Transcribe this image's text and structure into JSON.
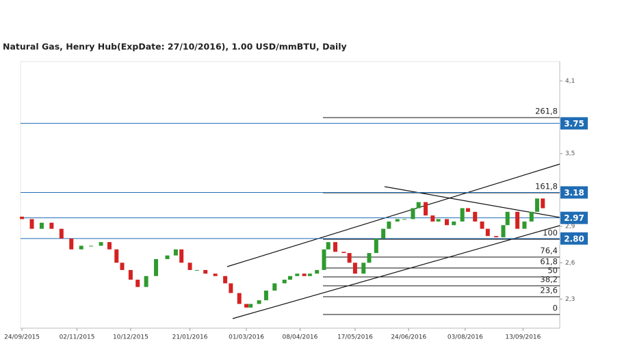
{
  "chart_data": {
    "type": "candlestick",
    "title": "Natural Gas, Henry Hub(ExpDate: 27/10/2016), 1.00 USD/mmBTU, Daily",
    "x": [
      "2015-09-24",
      "2015-10-01",
      "2015-10-08",
      "2015-10-15",
      "2015-10-22",
      "2015-10-29",
      "2015-11-05",
      "2015-11-12",
      "2015-11-19",
      "2015-11-25",
      "2015-11-30",
      "2015-12-04",
      "2015-12-10",
      "2015-12-15",
      "2015-12-21",
      "2015-12-28",
      "2016-01-05",
      "2016-01-11",
      "2016-01-15",
      "2016-01-21",
      "2016-01-26",
      "2016-02-01",
      "2016-02-08",
      "2016-02-15",
      "2016-02-19",
      "2016-02-25",
      "2016-03-01",
      "2016-03-04",
      "2016-03-10",
      "2016-03-15",
      "2016-03-21",
      "2016-03-28",
      "2016-04-01",
      "2016-04-06",
      "2016-04-11",
      "2016-04-15",
      "2016-04-20",
      "2016-04-25",
      "2016-04-28",
      "2016-05-03",
      "2016-05-09",
      "2016-05-13",
      "2016-05-17",
      "2016-05-23",
      "2016-05-27",
      "2016-06-01",
      "2016-06-06",
      "2016-06-10",
      "2016-06-16",
      "2016-06-21",
      "2016-06-27",
      "2016-07-01",
      "2016-07-06",
      "2016-07-11",
      "2016-07-15",
      "2016-07-21",
      "2016-07-26",
      "2016-08-01",
      "2016-08-05",
      "2016-08-10",
      "2016-08-15",
      "2016-08-19",
      "2016-08-25",
      "2016-08-30",
      "2016-09-02",
      "2016-09-09",
      "2016-09-14",
      "2016-09-19",
      "2016-09-23",
      "2016-09-27"
    ],
    "open": [
      2.98,
      2.96,
      2.88,
      2.93,
      2.88,
      2.8,
      2.71,
      2.74,
      2.74,
      2.77,
      2.71,
      2.6,
      2.54,
      2.46,
      2.4,
      2.49,
      2.63,
      2.66,
      2.71,
      2.6,
      2.54,
      2.54,
      2.51,
      2.49,
      2.43,
      2.35,
      2.26,
      2.23,
      2.26,
      2.29,
      2.37,
      2.43,
      2.46,
      2.49,
      2.51,
      2.49,
      2.51,
      2.54,
      2.71,
      2.77,
      2.69,
      2.68,
      2.6,
      2.51,
      2.6,
      2.68,
      2.8,
      2.88,
      2.94,
      2.96,
      2.96,
      3.05,
      3.1,
      2.99,
      2.94,
      2.96,
      2.91,
      2.94,
      3.05,
      3.02,
      2.94,
      2.88,
      2.82,
      2.81,
      2.91,
      3.02,
      2.88,
      2.94,
      3.02,
      3.13
    ],
    "close": [
      2.96,
      2.88,
      2.93,
      2.88,
      2.8,
      2.71,
      2.74,
      2.74,
      2.77,
      2.71,
      2.6,
      2.54,
      2.46,
      2.4,
      2.49,
      2.63,
      2.66,
      2.71,
      2.6,
      2.54,
      2.54,
      2.51,
      2.49,
      2.43,
      2.35,
      2.26,
      2.23,
      2.26,
      2.29,
      2.37,
      2.43,
      2.46,
      2.49,
      2.51,
      2.49,
      2.51,
      2.54,
      2.71,
      2.77,
      2.69,
      2.68,
      2.6,
      2.51,
      2.6,
      2.68,
      2.8,
      2.88,
      2.94,
      2.96,
      2.96,
      3.05,
      3.1,
      2.99,
      2.94,
      2.96,
      2.91,
      2.94,
      3.05,
      3.02,
      2.94,
      2.88,
      2.82,
      2.81,
      2.91,
      3.02,
      2.88,
      2.94,
      3.02,
      3.13,
      3.05
    ],
    "up_color": "#2f9a2f",
    "down_color": "#d42222",
    "xlim": [
      "2015-09-23",
      "2016-10-09"
    ],
    "xticks": [
      {
        "value": "2015-09-24",
        "label": "24/09/2015"
      },
      {
        "value": "2015-11-02",
        "label": "02/11/2015"
      },
      {
        "value": "2015-12-10",
        "label": "10/12/2015"
      },
      {
        "value": "2016-01-21",
        "label": "21/01/2016"
      },
      {
        "value": "2016-03-01",
        "label": "01/03/2016"
      },
      {
        "value": "2016-04-08",
        "label": "08/04/2016"
      },
      {
        "value": "2016-05-17",
        "label": "17/05/2016"
      },
      {
        "value": "2016-06-24",
        "label": "24/06/2016"
      },
      {
        "value": "2016-08-03",
        "label": "03/08/2016"
      },
      {
        "value": "2016-09-13",
        "label": "13/09/2016"
      }
    ],
    "ylim": [
      2.06,
      4.26
    ],
    "yticks": [
      {
        "value": 4.1,
        "label": "4,1"
      },
      {
        "value": 3.5,
        "label": "3,5"
      },
      {
        "value": 2.9,
        "label": "2,9"
      },
      {
        "value": 2.6,
        "label": "2,6"
      },
      {
        "value": 2.3,
        "label": "2,3"
      }
    ],
    "levels": [
      3.75,
      3.18,
      2.97,
      {
        "value": 2.8,
        "label": "2.80"
      }
    ],
    "level_color": "#1f6cb4",
    "fibonacci": [
      {
        "value": 261.8,
        "label": "261,8"
      },
      {
        "value": 161.8,
        "label": "161,8"
      },
      100,
      {
        "value": 76.4,
        "label": "76,4"
      },
      {
        "value": 61.8,
        "label": "61,8"
      },
      50,
      {
        "value": 38.2,
        "label": "38,2"
      },
      {
        "value": 23.6,
        "label": "23,6"
      },
      0
    ]
  }
}
